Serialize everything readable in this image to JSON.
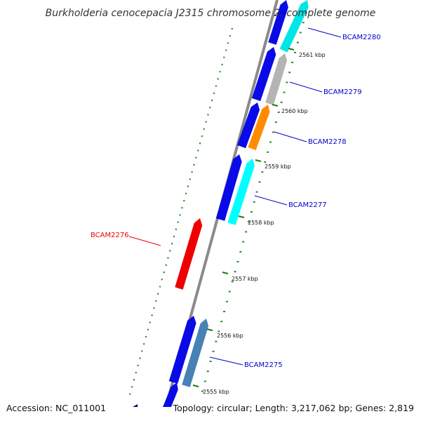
{
  "title": "Burkholderia cenocepacia J2315 chromosome 2, complete genome",
  "accession": "Accession: NC_011001",
  "topology": "Topology: circular; Length: 3,217,062 bp; Genes: 2,819",
  "colors": {
    "backbone": "#8a8a8a",
    "tick_major": "#1b7a1b",
    "tick_minor": "#2a8a2a",
    "leader_blue": "#0000cc",
    "leader_red": "#ee0000"
  },
  "scale_labels": [
    {
      "text": "2561 kbp",
      "kbp": 2561
    },
    {
      "text": "2560 kbp",
      "kbp": 2560
    },
    {
      "text": "2559 kbp",
      "kbp": 2559
    },
    {
      "text": "2558 kbp",
      "kbp": 2558
    },
    {
      "text": "2557 kbp",
      "kbp": 2557
    },
    {
      "text": "2556 kbp",
      "kbp": 2556
    },
    {
      "text": "2555 kbp",
      "kbp": 2555
    }
  ],
  "gene_labels": [
    {
      "text": "BCAM2280",
      "color": "#0000cc"
    },
    {
      "text": "BCAM2279",
      "color": "#0000cc"
    },
    {
      "text": "BCAM2278",
      "color": "#0000cc"
    },
    {
      "text": "BCAM2277",
      "color": "#0000cc"
    },
    {
      "text": "BCAM2276",
      "color": "#ee0000"
    },
    {
      "text": "BCAM2275",
      "color": "#0000cc"
    }
  ],
  "features": [
    {
      "color": "#0a0ae6"
    },
    {
      "color": "#00e6e6"
    },
    {
      "color": "#0a0ae6"
    },
    {
      "color": "#b4b4b4"
    },
    {
      "color": "#0a0ae6"
    },
    {
      "color": "#ff8c00"
    },
    {
      "color": "#0a0ae6"
    },
    {
      "color": "#00ffff"
    },
    {
      "color": "#ee0000"
    },
    {
      "color": "#0a0ae6"
    },
    {
      "color": "#4682b4"
    },
    {
      "color": "#0a0ae6"
    },
    {
      "color": "#00007a"
    },
    {
      "color": "#ee0000"
    }
  ]
}
